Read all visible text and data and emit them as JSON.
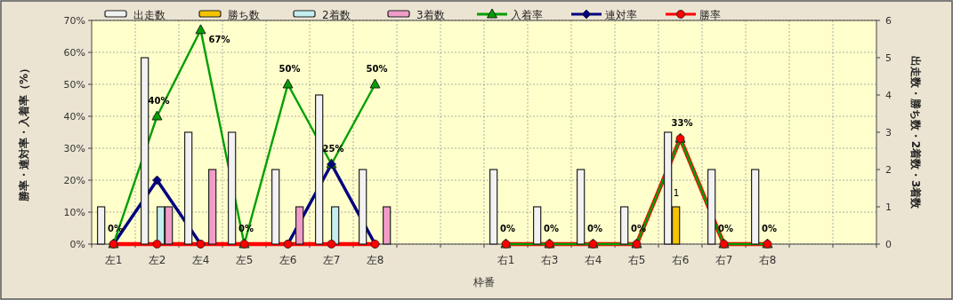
{
  "chart_data": {
    "type": "bar",
    "categories": [
      "左1",
      "左2",
      "左4",
      "左5",
      "左6",
      "左7",
      "左8",
      null,
      null,
      "右1",
      "右3",
      "右4",
      "右5",
      "右6",
      "右7",
      "右8",
      null,
      null
    ],
    "xlabel": "枠番",
    "ylabel": "勝率・連対率・入着率（%）",
    "y2label": "出走数・勝ち数・2着数・3着数",
    "ylim": [
      0,
      70
    ],
    "yticks": [
      {
        "value": 0,
        "label": "0%"
      },
      {
        "value": 10,
        "label": "10%"
      },
      {
        "value": 20,
        "label": "20%"
      },
      {
        "value": 30,
        "label": "30%"
      },
      {
        "value": 40,
        "label": "40%"
      },
      {
        "value": 50,
        "label": "50%"
      },
      {
        "value": 60,
        "label": "60%"
      },
      {
        "value": 70,
        "label": "70%"
      }
    ],
    "y2lim": [
      0,
      6
    ],
    "y2ticks": [
      0,
      1,
      2,
      3,
      4,
      5,
      6
    ],
    "grid": true,
    "legend": "top",
    "series": [
      {
        "name": "出走数",
        "axis": "y2",
        "color": "#f2f2f2",
        "values": [
          1,
          5,
          3,
          3,
          2,
          4,
          2,
          null,
          null,
          2,
          1,
          2,
          1,
          3,
          2,
          2,
          null,
          null
        ]
      },
      {
        "name": "勝ち数",
        "axis": "y2",
        "color": "#f5c400",
        "values": [
          0,
          0,
          0,
          0,
          0,
          0,
          0,
          null,
          null,
          0,
          0,
          0,
          0,
          1,
          0,
          0,
          null,
          null
        ],
        "value_labels": [
          null,
          null,
          null,
          null,
          null,
          null,
          null,
          null,
          null,
          null,
          null,
          null,
          null,
          "1",
          null,
          null,
          null,
          null
        ]
      },
      {
        "name": "2着数",
        "axis": "y2",
        "color": "#c4eef0",
        "values": [
          0,
          1,
          0,
          0,
          0,
          1,
          0,
          null,
          null,
          0,
          0,
          0,
          0,
          0,
          0,
          0,
          null,
          null
        ]
      },
      {
        "name": "3着数",
        "axis": "y2",
        "color": "#f09cc8",
        "values": [
          0,
          1,
          2,
          0,
          1,
          0,
          1,
          null,
          null,
          0,
          0,
          0,
          0,
          0,
          0,
          0,
          null,
          null
        ]
      },
      {
        "name": "入着率",
        "type": "line",
        "color": "#00a000",
        "marker": "triangle",
        "values": [
          0,
          40,
          67,
          0,
          50,
          25,
          50,
          null,
          null,
          0,
          0,
          0,
          0,
          33,
          0,
          0,
          null,
          null
        ],
        "value_labels": [
          "0%",
          "40%",
          "67%",
          "0%",
          "50%",
          "25%",
          "50%",
          null,
          null,
          "0%",
          "0%",
          "0%",
          "0%",
          "33%",
          "0%",
          "0%",
          null,
          null
        ]
      },
      {
        "name": "連対率",
        "type": "line",
        "color": "#000080",
        "marker": "diamond",
        "values": [
          0,
          20,
          0,
          null,
          0,
          25,
          0,
          null,
          null,
          null,
          null,
          null,
          null,
          null,
          null,
          null,
          null,
          null
        ]
      },
      {
        "name": "勝率",
        "type": "line",
        "color": "#ff0000",
        "marker": "circle",
        "values": [
          0,
          0,
          0,
          0,
          0,
          0,
          0,
          null,
          null,
          0,
          0,
          0,
          0,
          33,
          0,
          0,
          null,
          null
        ]
      }
    ]
  }
}
